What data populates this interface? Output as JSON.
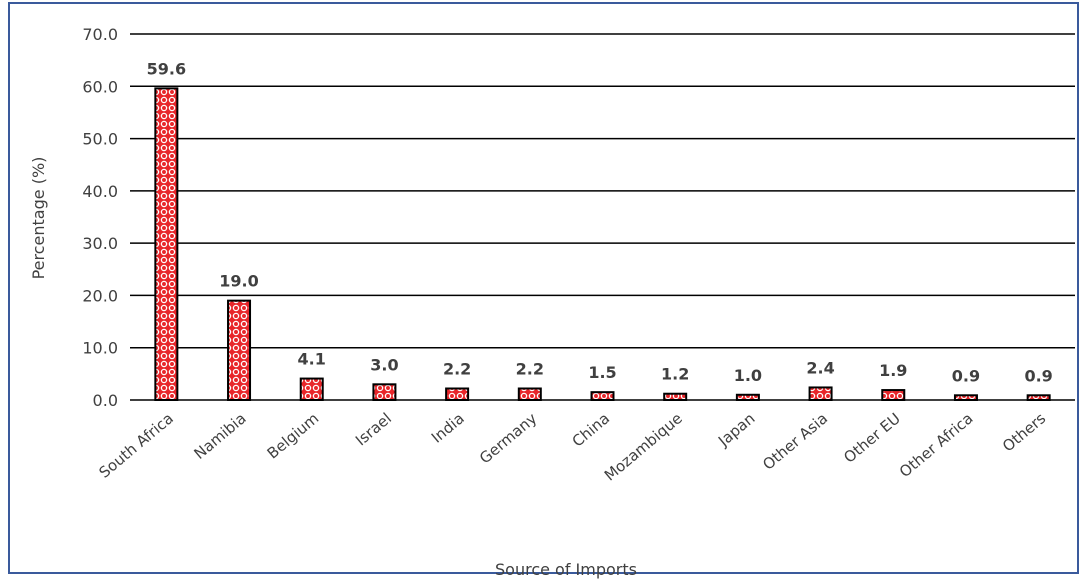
{
  "chart_data": {
    "type": "bar",
    "title": "",
    "xlabel": "Source of Imports",
    "ylabel": "Percentage (%)",
    "ylim": [
      0,
      70
    ],
    "yticks": [
      "0.0",
      "10.0",
      "20.0",
      "30.0",
      "40.0",
      "50.0",
      "60.0",
      "70.0"
    ],
    "categories": [
      "South Africa",
      "Namibia",
      "Belgium",
      "Israel",
      "India",
      "Germany",
      "China",
      "Mozambique",
      "Japan",
      "Other Asia",
      "Other EU",
      "Other Africa",
      "Others"
    ],
    "values": [
      59.6,
      19.0,
      4.1,
      3.0,
      2.2,
      2.2,
      1.5,
      1.2,
      1.0,
      2.4,
      1.9,
      0.9,
      0.9
    ],
    "value_labels": [
      "59.6",
      "19.0",
      "4.1",
      "3.0",
      "2.2",
      "2.2",
      "1.5",
      "1.2",
      "1.0",
      "2.4",
      "1.9",
      "0.9",
      "0.9"
    ],
    "grid": true,
    "legend": "none",
    "colors": {
      "bar_fill": "#e8262a",
      "bar_pattern": "#ffffff",
      "bar_border": "#000000",
      "grid": "#000000",
      "frame": "#3a5a9c"
    }
  }
}
